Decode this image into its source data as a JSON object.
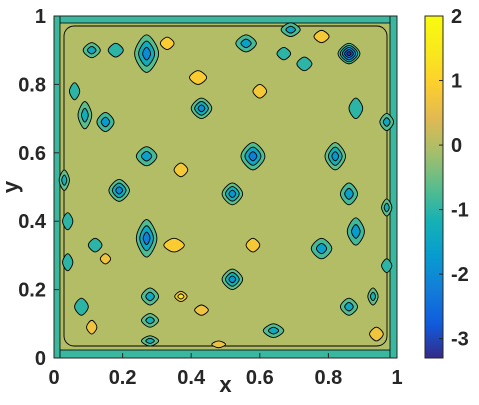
{
  "chart_data": {
    "type": "contour",
    "xlabel": "x",
    "ylabel": "y",
    "xlim": [
      0,
      1
    ],
    "ylim": [
      0,
      1
    ],
    "xticks": [
      "0",
      "0.2",
      "0.4",
      "0.6",
      "0.8",
      "1"
    ],
    "yticks": [
      "0",
      "0.2",
      "0.4",
      "0.6",
      "0.8",
      "1"
    ],
    "colorbar": {
      "range": [
        -3.3,
        2
      ],
      "ticks": [
        "2",
        "1",
        "0",
        "-1",
        "-2",
        "-3"
      ],
      "tick_values": [
        2,
        1,
        0,
        -1,
        -2,
        -3
      ],
      "colormap": "parula"
    },
    "background_value": 0,
    "features": [
      {
        "x": 0.11,
        "y": 0.9,
        "rx": 0.025,
        "ry": 0.022,
        "v": -1.4
      },
      {
        "x": 0.18,
        "y": 0.9,
        "rx": 0.022,
        "ry": 0.02,
        "v": -1.0
      },
      {
        "x": 0.27,
        "y": 0.89,
        "rx": 0.035,
        "ry": 0.055,
        "v": -2.0
      },
      {
        "x": 0.33,
        "y": 0.92,
        "rx": 0.02,
        "ry": 0.018,
        "v": 0.9
      },
      {
        "x": 0.56,
        "y": 0.92,
        "rx": 0.03,
        "ry": 0.025,
        "v": -1.6
      },
      {
        "x": 0.69,
        "y": 0.96,
        "rx": 0.028,
        "ry": 0.02,
        "v": -1.5
      },
      {
        "x": 0.78,
        "y": 0.94,
        "rx": 0.022,
        "ry": 0.018,
        "v": 0.8
      },
      {
        "x": 0.86,
        "y": 0.89,
        "rx": 0.032,
        "ry": 0.03,
        "v": -3.2
      },
      {
        "x": 0.73,
        "y": 0.86,
        "rx": 0.022,
        "ry": 0.02,
        "v": -1.0
      },
      {
        "x": 0.67,
        "y": 0.89,
        "rx": 0.02,
        "ry": 0.018,
        "v": -1.0
      },
      {
        "x": 0.42,
        "y": 0.82,
        "rx": 0.025,
        "ry": 0.02,
        "v": 0.9
      },
      {
        "x": 0.06,
        "y": 0.78,
        "rx": 0.015,
        "ry": 0.025,
        "v": -1.0
      },
      {
        "x": 0.09,
        "y": 0.71,
        "rx": 0.02,
        "ry": 0.04,
        "v": -1.3
      },
      {
        "x": 0.15,
        "y": 0.69,
        "rx": 0.025,
        "ry": 0.028,
        "v": -1.7
      },
      {
        "x": 0.43,
        "y": 0.73,
        "rx": 0.03,
        "ry": 0.03,
        "v": -1.9
      },
      {
        "x": 0.6,
        "y": 0.78,
        "rx": 0.02,
        "ry": 0.02,
        "v": 0.8
      },
      {
        "x": 0.88,
        "y": 0.73,
        "rx": 0.02,
        "ry": 0.03,
        "v": -1.0
      },
      {
        "x": 0.97,
        "y": 0.69,
        "rx": 0.02,
        "ry": 0.025,
        "v": -1.4
      },
      {
        "x": 0.27,
        "y": 0.59,
        "rx": 0.03,
        "ry": 0.028,
        "v": -1.6
      },
      {
        "x": 0.58,
        "y": 0.59,
        "rx": 0.035,
        "ry": 0.04,
        "v": -2.2
      },
      {
        "x": 0.82,
        "y": 0.59,
        "rx": 0.03,
        "ry": 0.04,
        "v": -1.8
      },
      {
        "x": 0.19,
        "y": 0.49,
        "rx": 0.03,
        "ry": 0.032,
        "v": -2.0
      },
      {
        "x": 0.37,
        "y": 0.55,
        "rx": 0.02,
        "ry": 0.02,
        "v": 0.8
      },
      {
        "x": 0.52,
        "y": 0.48,
        "rx": 0.03,
        "ry": 0.032,
        "v": -1.8
      },
      {
        "x": 0.86,
        "y": 0.48,
        "rx": 0.025,
        "ry": 0.032,
        "v": -1.6
      },
      {
        "x": 0.03,
        "y": 0.52,
        "rx": 0.015,
        "ry": 0.03,
        "v": -1.2
      },
      {
        "x": 0.04,
        "y": 0.4,
        "rx": 0.015,
        "ry": 0.025,
        "v": -1.0
      },
      {
        "x": 0.27,
        "y": 0.35,
        "rx": 0.03,
        "ry": 0.055,
        "v": -2.2
      },
      {
        "x": 0.35,
        "y": 0.33,
        "rx": 0.03,
        "ry": 0.02,
        "v": 0.9
      },
      {
        "x": 0.58,
        "y": 0.33,
        "rx": 0.02,
        "ry": 0.02,
        "v": 0.8
      },
      {
        "x": 0.78,
        "y": 0.32,
        "rx": 0.03,
        "ry": 0.03,
        "v": -1.6
      },
      {
        "x": 0.88,
        "y": 0.37,
        "rx": 0.025,
        "ry": 0.04,
        "v": -1.7
      },
      {
        "x": 0.12,
        "y": 0.33,
        "rx": 0.02,
        "ry": 0.02,
        "v": -1.0
      },
      {
        "x": 0.15,
        "y": 0.29,
        "rx": 0.015,
        "ry": 0.015,
        "v": 0.7
      },
      {
        "x": 0.04,
        "y": 0.28,
        "rx": 0.015,
        "ry": 0.025,
        "v": -1.0
      },
      {
        "x": 0.52,
        "y": 0.23,
        "rx": 0.03,
        "ry": 0.03,
        "v": -1.8
      },
      {
        "x": 0.28,
        "y": 0.18,
        "rx": 0.025,
        "ry": 0.025,
        "v": -1.4
      },
      {
        "x": 0.37,
        "y": 0.18,
        "rx": 0.018,
        "ry": 0.015,
        "v": 1.5
      },
      {
        "x": 0.43,
        "y": 0.14,
        "rx": 0.02,
        "ry": 0.015,
        "v": 0.7
      },
      {
        "x": 0.08,
        "y": 0.15,
        "rx": 0.02,
        "ry": 0.025,
        "v": -1.0
      },
      {
        "x": 0.11,
        "y": 0.09,
        "rx": 0.015,
        "ry": 0.02,
        "v": 0.7
      },
      {
        "x": 0.28,
        "y": 0.11,
        "rx": 0.025,
        "ry": 0.02,
        "v": -1.2
      },
      {
        "x": 0.28,
        "y": 0.05,
        "rx": 0.025,
        "ry": 0.015,
        "v": -1.2
      },
      {
        "x": 0.64,
        "y": 0.08,
        "rx": 0.03,
        "ry": 0.02,
        "v": -1.4
      },
      {
        "x": 0.86,
        "y": 0.15,
        "rx": 0.025,
        "ry": 0.025,
        "v": -1.4
      },
      {
        "x": 0.93,
        "y": 0.18,
        "rx": 0.015,
        "ry": 0.025,
        "v": -1.2
      },
      {
        "x": 0.94,
        "y": 0.07,
        "rx": 0.02,
        "ry": 0.02,
        "v": 0.7
      },
      {
        "x": 0.48,
        "y": 0.04,
        "rx": 0.02,
        "ry": 0.01,
        "v": 0.6
      },
      {
        "x": 0.97,
        "y": 0.44,
        "rx": 0.015,
        "ry": 0.025,
        "v": -1.2
      },
      {
        "x": 0.97,
        "y": 0.27,
        "rx": 0.015,
        "ry": 0.02,
        "v": -1.0
      }
    ]
  }
}
